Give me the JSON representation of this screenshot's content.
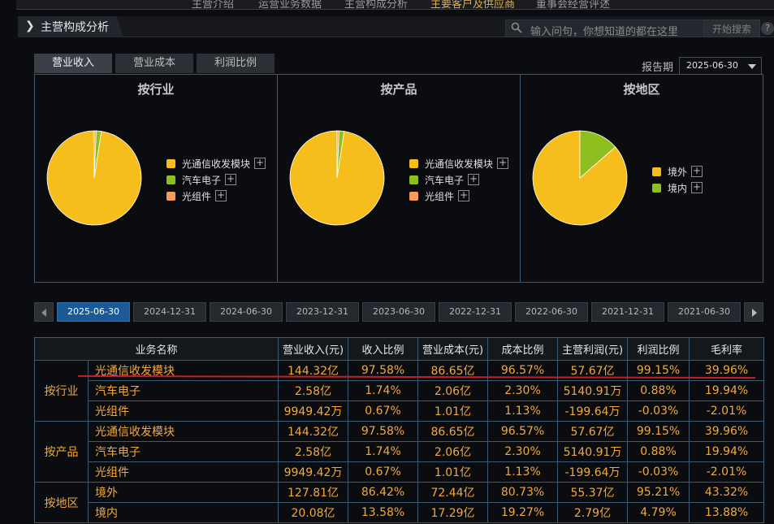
{
  "topnav": [
    "主营介绍",
    "运营业务数据",
    "主营构成分析",
    "主要客户及供应商",
    "董事会经营评述"
  ],
  "section": {
    "title": "主营构成分析",
    "search_placeholder": "输入问句，你想知道的都在这里",
    "search_button": "开始搜索",
    "help": "?"
  },
  "chart_tabs": [
    "营业收入",
    "营业成本",
    "利润比例"
  ],
  "report": {
    "label": "报告期",
    "value": "2025-06-30"
  },
  "panels": [
    {
      "title": "按行业",
      "legend": [
        "光通信收发模块",
        "汽车电子",
        "光组件"
      ]
    },
    {
      "title": "按产品",
      "legend": [
        "光通信收发模块",
        "汽车电子",
        "光组件"
      ]
    },
    {
      "title": "按地区",
      "legend": [
        "境外",
        "境内"
      ]
    }
  ],
  "legend_plus": "+",
  "colors": {
    "series1": "#f5be1c",
    "series2": "#8fbf1f",
    "series3": "#f59a5c",
    "accent_tab": "#1b5a96",
    "value_text": "#f2a93b",
    "border": "#3d5a73"
  },
  "chart_data": [
    {
      "type": "pie",
      "title": "按行业",
      "categories": [
        "光通信收发模块",
        "汽车电子",
        "光组件"
      ],
      "values": [
        97.58,
        1.74,
        0.67
      ]
    },
    {
      "type": "pie",
      "title": "按产品",
      "categories": [
        "光通信收发模块",
        "汽车电子",
        "光组件"
      ],
      "values": [
        97.58,
        1.74,
        0.67
      ]
    },
    {
      "type": "pie",
      "title": "按地区",
      "categories": [
        "境外",
        "境内"
      ],
      "values": [
        86.42,
        13.58
      ]
    }
  ],
  "date_tabs": [
    "2025-06-30",
    "2024-12-31",
    "2024-06-30",
    "2023-12-31",
    "2023-06-30",
    "2022-12-31",
    "2022-06-30",
    "2021-12-31",
    "2021-06-30"
  ],
  "table": {
    "headers": [
      "业务名称",
      "营业收入(元)",
      "收入比例",
      "营业成本(元)",
      "成本比例",
      "主营利润(元)",
      "利润比例",
      "毛利率"
    ],
    "groups": [
      {
        "name": "按行业",
        "rows": [
          [
            "光通信收发模块",
            "144.32亿",
            "97.58%",
            "86.65亿",
            "96.57%",
            "57.67亿",
            "99.15%",
            "39.96%"
          ],
          [
            "汽车电子",
            "2.58亿",
            "1.74%",
            "2.06亿",
            "2.30%",
            "5140.91万",
            "0.88%",
            "19.94%"
          ],
          [
            "光组件",
            "9949.42万",
            "0.67%",
            "1.01亿",
            "1.13%",
            "-199.64万",
            "-0.03%",
            "-2.01%"
          ]
        ]
      },
      {
        "name": "按产品",
        "rows": [
          [
            "光通信收发模块",
            "144.32亿",
            "97.58%",
            "86.65亿",
            "96.57%",
            "57.67亿",
            "99.15%",
            "39.96%"
          ],
          [
            "汽车电子",
            "2.58亿",
            "1.74%",
            "2.06亿",
            "2.30%",
            "5140.91万",
            "0.88%",
            "19.94%"
          ],
          [
            "光组件",
            "9949.42万",
            "0.67%",
            "1.01亿",
            "1.13%",
            "-199.64万",
            "-0.03%",
            "-2.01%"
          ]
        ]
      },
      {
        "name": "按地区",
        "rows": [
          [
            "境外",
            "127.81亿",
            "86.42%",
            "72.44亿",
            "80.73%",
            "55.37亿",
            "95.21%",
            "43.32%"
          ],
          [
            "境内",
            "20.08亿",
            "13.58%",
            "17.29亿",
            "19.27%",
            "2.79亿",
            "4.79%",
            "13.88%"
          ]
        ]
      }
    ]
  }
}
